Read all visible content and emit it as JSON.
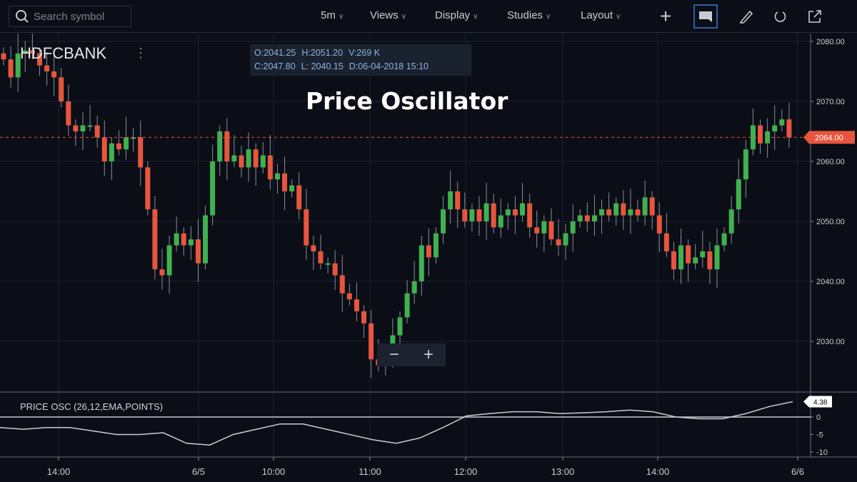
{
  "toolbar": {
    "search_placeholder": "Search symbol",
    "menus": [
      {
        "label": "5m"
      },
      {
        "label": "Views"
      },
      {
        "label": "Display"
      },
      {
        "label": "Studies"
      },
      {
        "label": "Layout"
      }
    ],
    "tools": [
      "plus-icon",
      "comment-icon",
      "pencil-icon",
      "undo-icon",
      "share-icon"
    ]
  },
  "symbol": "HDFCBANK",
  "ohlc": {
    "open": "O:2041.25",
    "high": "H:2051.20",
    "volume": "V:269 K",
    "close": "C:2047.80",
    "low": "L: 2040.15",
    "date": "D:06-04-2018 15:10"
  },
  "title": "Price Oscillator",
  "zoom": {
    "minus": "−",
    "plus": "+"
  },
  "colors": {
    "up": "#3fb24f",
    "down": "#e8553e",
    "background": "#0b0e17",
    "last_price": "#e8553e"
  },
  "chart_data": [
    {
      "type": "candlestick",
      "symbol": "HDFCBANK",
      "interval": "5m",
      "yticks": [
        "2080.00",
        "2070.00",
        "2060.00",
        "2050.00",
        "2040.00",
        "2030.00"
      ],
      "ylim": [
        2022,
        2081
      ],
      "last_price": "2064.00",
      "xticks": [
        "14:00",
        "6/5",
        "10:00",
        "11:00",
        "12:00",
        "13:00",
        "14:00",
        "6/6"
      ],
      "closes": [
        2077,
        2074,
        2078,
        2078.5,
        2078,
        2076,
        2075,
        2074,
        2070,
        2066,
        2065,
        2066,
        2066,
        2064,
        2060,
        2063,
        2062,
        2064,
        2064,
        2059,
        2052,
        2042,
        2041,
        2046,
        2048,
        2046,
        2047,
        2043,
        2051,
        2060,
        2065,
        2060,
        2061,
        2059,
        2062,
        2059,
        2061,
        2057,
        2058,
        2055,
        2056,
        2052,
        2046,
        2045,
        2043,
        2043,
        2041,
        2038,
        2037,
        2035,
        2033,
        2027,
        2026,
        2028,
        2031,
        2034,
        2038,
        2040,
        2046,
        2044,
        2048,
        2052,
        2055,
        2052,
        2050,
        2052,
        2050,
        2053,
        2049,
        2051,
        2052,
        2051,
        2053,
        2049,
        2048,
        2050,
        2047,
        2046,
        2048,
        2050,
        2051,
        2050,
        2051,
        2052,
        2051,
        2053,
        2051,
        2052,
        2051,
        2054,
        2051,
        2048,
        2045,
        2042,
        2046,
        2043,
        2044,
        2045,
        2042,
        2046,
        2048,
        2052,
        2057,
        2062,
        2066,
        2063,
        2065,
        2066,
        2067,
        2064
      ]
    },
    {
      "type": "line",
      "name": "PRICE OSC (26,12,EMA,POINTS)",
      "yticks": [
        "0",
        "-5",
        "-10"
      ],
      "ylim": [
        -10.5,
        5.5
      ],
      "last_value": "4.38",
      "values": [
        -3,
        -3.5,
        -3,
        -3,
        -4,
        -5,
        -5,
        -4.5,
        -7.5,
        -8,
        -5,
        -3.5,
        -2,
        -2,
        -3.5,
        -5,
        -6.5,
        -7.5,
        -6,
        -3,
        0.3,
        1,
        1.5,
        1.5,
        1,
        1.2,
        1.5,
        2,
        1.5,
        0,
        -0.5,
        -0.5,
        1,
        3,
        4.38
      ]
    }
  ]
}
